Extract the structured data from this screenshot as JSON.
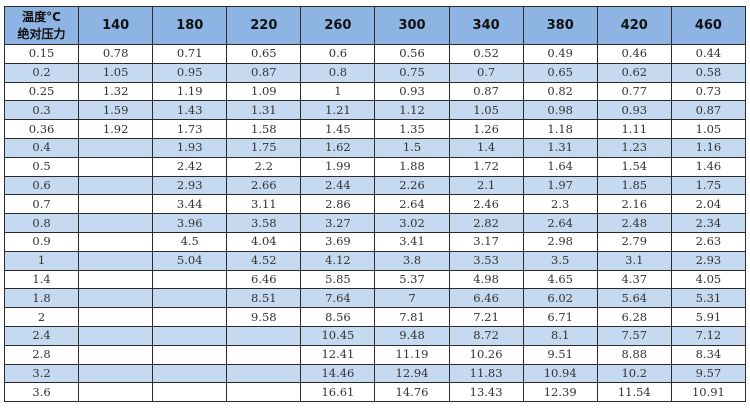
{
  "table": {
    "corner": {
      "line1": "温度°C",
      "line2": "绝对压力"
    },
    "columns": [
      "140",
      "180",
      "220",
      "260",
      "300",
      "340",
      "380",
      "420",
      "460"
    ],
    "rows": [
      {
        "pressure": "0.15",
        "values": [
          "0.78",
          "0.71",
          "0.65",
          "0.6",
          "0.56",
          "0.52",
          "0.49",
          "0.46",
          "0.44"
        ]
      },
      {
        "pressure": "0.2",
        "values": [
          "1.05",
          "0.95",
          "0.87",
          "0.8",
          "0.75",
          "0.7",
          "0.65",
          "0.62",
          "0.58"
        ]
      },
      {
        "pressure": "0.25",
        "values": [
          "1.32",
          "1.19",
          "1.09",
          "1",
          "0.93",
          "0.87",
          "0.82",
          "0.77",
          "0.73"
        ]
      },
      {
        "pressure": "0.3",
        "values": [
          "1.59",
          "1.43",
          "1.31",
          "1.21",
          "1.12",
          "1.05",
          "0.98",
          "0.93",
          "0.87"
        ]
      },
      {
        "pressure": "0.36",
        "values": [
          "1.92",
          "1.73",
          "1.58",
          "1.45",
          "1.35",
          "1.26",
          "1.18",
          "1.11",
          "1.05"
        ]
      },
      {
        "pressure": "0.4",
        "values": [
          "",
          "1.93",
          "1.75",
          "1.62",
          "1.5",
          "1.4",
          "1.31",
          "1.23",
          "1.16"
        ]
      },
      {
        "pressure": "0.5",
        "values": [
          "",
          "2.42",
          "2.2",
          "1.99",
          "1.88",
          "1.72",
          "1.64",
          "1.54",
          "1.46"
        ]
      },
      {
        "pressure": "0.6",
        "values": [
          "",
          "2.93",
          "2.66",
          "2.44",
          "2.26",
          "2.1",
          "1.97",
          "1.85",
          "1.75"
        ]
      },
      {
        "pressure": "0.7",
        "values": [
          "",
          "3.44",
          "3.11",
          "2.86",
          "2.64",
          "2.46",
          "2.3",
          "2.16",
          "2.04"
        ]
      },
      {
        "pressure": "0.8",
        "values": [
          "",
          "3.96",
          "3.58",
          "3.27",
          "3.02",
          "2.82",
          "2.64",
          "2.48",
          "2.34"
        ]
      },
      {
        "pressure": "0.9",
        "values": [
          "",
          "4.5",
          "4.04",
          "3.69",
          "3.41",
          "3.17",
          "2.98",
          "2.79",
          "2.63"
        ]
      },
      {
        "pressure": "1",
        "values": [
          "",
          "5.04",
          "4.52",
          "4.12",
          "3.8",
          "3.53",
          "3.5",
          "3.1",
          "2.93"
        ]
      },
      {
        "pressure": "1.4",
        "values": [
          "",
          "",
          "6.46",
          "5.85",
          "5.37",
          "4.98",
          "4.65",
          "4.37",
          "4.05"
        ]
      },
      {
        "pressure": "1.8",
        "values": [
          "",
          "",
          "8.51",
          "7.64",
          "7",
          "6.46",
          "6.02",
          "5.64",
          "5.31"
        ]
      },
      {
        "pressure": "2",
        "values": [
          "",
          "",
          "9.58",
          "8.56",
          "7.81",
          "7.21",
          "6.71",
          "6.28",
          "5.91"
        ]
      },
      {
        "pressure": "2.4",
        "values": [
          "",
          "",
          "",
          "10.45",
          "9.48",
          "8.72",
          "8.1",
          "7.57",
          "7.12"
        ]
      },
      {
        "pressure": "2.8",
        "values": [
          "",
          "",
          "",
          "12.41",
          "11.19",
          "10.26",
          "9.51",
          "8.88",
          "8.34"
        ]
      },
      {
        "pressure": "3.2",
        "values": [
          "",
          "",
          "",
          "14.46",
          "12.94",
          "11.83",
          "10.94",
          "10.2",
          "9.57"
        ]
      },
      {
        "pressure": "3.6",
        "values": [
          "",
          "",
          "",
          "16.61",
          "14.76",
          "13.43",
          "12.39",
          "11.54",
          "10.91"
        ]
      }
    ],
    "colors": {
      "header": "#8db4e2",
      "alt_row": "#c5d9f1",
      "border": "#2b2b2b"
    }
  }
}
